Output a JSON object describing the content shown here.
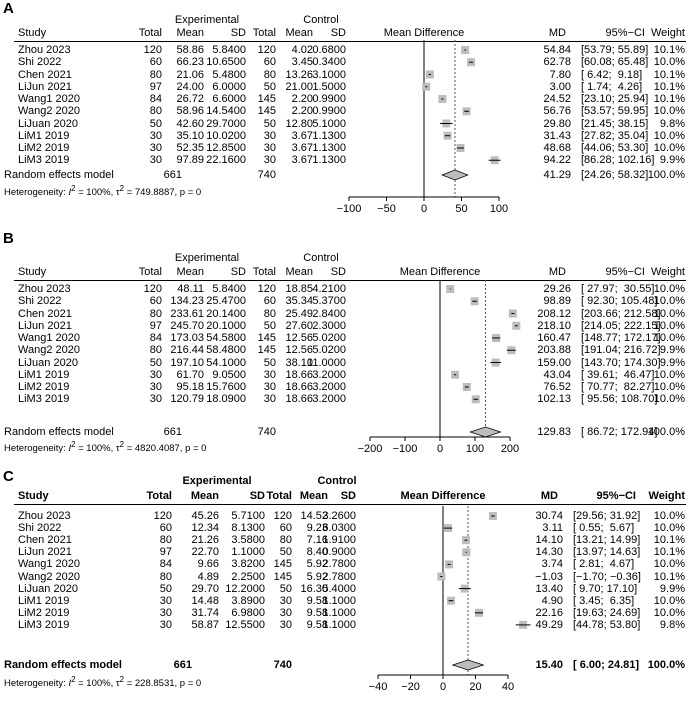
{
  "headers": {
    "study": "Study",
    "experimental": "Experimental",
    "control": "Control",
    "total": "Total",
    "mean": "Mean",
    "sd": "SD",
    "mean_difference": "Mean Difference",
    "md": "MD",
    "ci": "95%−CI",
    "weight": "Weight"
  },
  "chart_data": [
    {
      "panel": "A",
      "type": "forest",
      "bold_headers": false,
      "xlim": [
        -100,
        100
      ],
      "ticks": [
        "−100",
        "−50",
        "0",
        "50",
        "100"
      ],
      "tick_values": [
        -100,
        -50,
        0,
        50,
        100
      ],
      "rows": [
        {
          "study": "Zhou 2023",
          "e_total": "120",
          "e_mean": "58.86",
          "e_sd": "5.8400",
          "c_total": "120",
          "c_mean": "4.02",
          "c_sd": "0.6800",
          "md": "54.84",
          "ci": "[53.79; 55.89]",
          "weight": "10.1%",
          "md_v": 54.84,
          "lo": 53.79,
          "hi": 55.89
        },
        {
          "study": "Shi 2022",
          "e_total": "60",
          "e_mean": "66.23",
          "e_sd": "10.6500",
          "c_total": "60",
          "c_mean": "3.45",
          "c_sd": "0.3400",
          "md": "62.78",
          "ci": "[60.08; 65.48]",
          "weight": "10.0%",
          "md_v": 62.78,
          "lo": 60.08,
          "hi": 65.48
        },
        {
          "study": "Chen 2021",
          "e_total": "80",
          "e_mean": "21.06",
          "e_sd": "5.4800",
          "c_total": "80",
          "c_mean": "13.26",
          "c_sd": "3.1000",
          "md": "7.80",
          "ci": "[ 6.42;  9.18]",
          "weight": "10.1%",
          "md_v": 7.8,
          "lo": 6.42,
          "hi": 9.18
        },
        {
          "study": "LiJun 2021",
          "e_total": "97",
          "e_mean": "24.00",
          "e_sd": "6.0000",
          "c_total": "50",
          "c_mean": "21.00",
          "c_sd": "1.5000",
          "md": "3.00",
          "ci": "[ 1.74;  4.26]",
          "weight": "10.1%",
          "md_v": 3.0,
          "lo": 1.74,
          "hi": 4.26
        },
        {
          "study": "Wang1 2020",
          "e_total": "84",
          "e_mean": "26.72",
          "e_sd": "6.6000",
          "c_total": "145",
          "c_mean": "2.20",
          "c_sd": "0.9900",
          "md": "24.52",
          "ci": "[23.10; 25.94]",
          "weight": "10.1%",
          "md_v": 24.52,
          "lo": 23.1,
          "hi": 25.94
        },
        {
          "study": "Wang2 2020",
          "e_total": "80",
          "e_mean": "58.96",
          "e_sd": "14.5400",
          "c_total": "145",
          "c_mean": "2.20",
          "c_sd": "0.9900",
          "md": "56.76",
          "ci": "[53.57; 59.95]",
          "weight": "10.0%",
          "md_v": 56.76,
          "lo": 53.57,
          "hi": 59.95
        },
        {
          "study": "LiJuan 2020",
          "e_total": "50",
          "e_mean": "42.60",
          "e_sd": "29.7000",
          "c_total": "50",
          "c_mean": "12.80",
          "c_sd": "5.1000",
          "md": "29.80",
          "ci": "[21.45; 38.15]",
          "weight": "9.8%",
          "md_v": 29.8,
          "lo": 21.45,
          "hi": 38.15
        },
        {
          "study": "LiM1 2019",
          "e_total": "30",
          "e_mean": "35.10",
          "e_sd": "10.0200",
          "c_total": "30",
          "c_mean": "3.67",
          "c_sd": "1.1300",
          "md": "31.43",
          "ci": "[27.82; 35.04]",
          "weight": "10.0%",
          "md_v": 31.43,
          "lo": 27.82,
          "hi": 35.04
        },
        {
          "study": "LiM2 2019",
          "e_total": "30",
          "e_mean": "52.35",
          "e_sd": "12.8500",
          "c_total": "30",
          "c_mean": "3.67",
          "c_sd": "1.1300",
          "md": "48.68",
          "ci": "[44.06; 53.30]",
          "weight": "10.0%",
          "md_v": 48.68,
          "lo": 44.06,
          "hi": 53.3
        },
        {
          "study": "LiM3 2019",
          "e_total": "30",
          "e_mean": "97.89",
          "e_sd": "22.1600",
          "c_total": "30",
          "c_mean": "3.67",
          "c_sd": "1.1300",
          "md": "94.22",
          "ci": "[86.28; 102.16]",
          "weight": "9.9%",
          "md_v": 94.22,
          "lo": 86.28,
          "hi": 102.16
        }
      ],
      "pooled": {
        "label": "Random effects model",
        "e_total": "661",
        "c_total": "740",
        "md": "41.29",
        "ci": "[24.26; 58.32]",
        "weight": "100.0%",
        "md_v": 41.29,
        "lo": 24.26,
        "hi": 58.32
      },
      "heterogeneity": {
        "prefix": "Heterogeneity: ",
        "i2": "I",
        "i2_rest": " = 100%, ",
        "tau": "τ",
        "tau_rest": " = 749.8887, p = 0"
      }
    },
    {
      "panel": "B",
      "type": "forest",
      "bold_headers": false,
      "xlim": [
        -200,
        200
      ],
      "ticks": [
        "−200",
        "−100",
        "0",
        "100",
        "200"
      ],
      "tick_values": [
        -200,
        -100,
        0,
        100,
        200
      ],
      "rows": [
        {
          "study": "Zhou 2023",
          "e_total": "120",
          "e_mean": "48.11",
          "e_sd": "5.8400",
          "c_total": "120",
          "c_mean": "18.85",
          "c_sd": "4.2100",
          "md": "29.26",
          "ci": "[ 27.97;  30.55]",
          "weight": "10.0%",
          "md_v": 29.26,
          "lo": 27.97,
          "hi": 30.55
        },
        {
          "study": "Shi 2022",
          "e_total": "60",
          "e_mean": "134.23",
          "e_sd": "25.4700",
          "c_total": "60",
          "c_mean": "35.34",
          "c_sd": "5.3700",
          "md": "98.89",
          "ci": "[ 92.30; 105.48]",
          "weight": "10.0%",
          "md_v": 98.89,
          "lo": 92.3,
          "hi": 105.48
        },
        {
          "study": "Chen 2021",
          "e_total": "80",
          "e_mean": "233.61",
          "e_sd": "20.1400",
          "c_total": "80",
          "c_mean": "25.49",
          "c_sd": "2.8400",
          "md": "208.12",
          "ci": "[203.66; 212.58]",
          "weight": "10.0%",
          "md_v": 208.12,
          "lo": 203.66,
          "hi": 212.58
        },
        {
          "study": "LiJun 2021",
          "e_total": "97",
          "e_mean": "245.70",
          "e_sd": "20.1000",
          "c_total": "50",
          "c_mean": "27.60",
          "c_sd": "2.3000",
          "md": "218.10",
          "ci": "[214.05; 222.15]",
          "weight": "10.0%",
          "md_v": 218.1,
          "lo": 214.05,
          "hi": 222.15
        },
        {
          "study": "Wang1 2020",
          "e_total": "84",
          "e_mean": "173.03",
          "e_sd": "54.5800",
          "c_total": "145",
          "c_mean": "12.56",
          "c_sd": "5.0200",
          "md": "160.47",
          "ci": "[148.77; 172.17]",
          "weight": "10.0%",
          "md_v": 160.47,
          "lo": 148.77,
          "hi": 172.17
        },
        {
          "study": "Wang2 2020",
          "e_total": "80",
          "e_mean": "216.44",
          "e_sd": "58.4800",
          "c_total": "145",
          "c_mean": "12.56",
          "c_sd": "5.0200",
          "md": "203.88",
          "ci": "[191.04; 216.72]",
          "weight": "9.9%",
          "md_v": 203.88,
          "lo": 191.04,
          "hi": 216.72
        },
        {
          "study": "LiJuan 2020",
          "e_total": "50",
          "e_mean": "197.10",
          "e_sd": "54.1000",
          "c_total": "50",
          "c_mean": "38.10",
          "c_sd": "11.0000",
          "md": "159.00",
          "ci": "[143.70; 174.30]",
          "weight": "9.9%",
          "md_v": 159.0,
          "lo": 143.7,
          "hi": 174.3
        },
        {
          "study": "LiM1 2019",
          "e_total": "30",
          "e_mean": "61.70",
          "e_sd": "9.0500",
          "c_total": "30",
          "c_mean": "18.66",
          "c_sd": "3.2000",
          "md": "43.04",
          "ci": "[ 39.61;  46.47]",
          "weight": "10.0%",
          "md_v": 43.04,
          "lo": 39.61,
          "hi": 46.47
        },
        {
          "study": "LiM2 2019",
          "e_total": "30",
          "e_mean": "95.18",
          "e_sd": "15.7600",
          "c_total": "30",
          "c_mean": "18.66",
          "c_sd": "3.2000",
          "md": "76.52",
          "ci": "[ 70.77;  82.27]",
          "weight": "10.0%",
          "md_v": 76.52,
          "lo": 70.77,
          "hi": 82.27
        },
        {
          "study": "LiM3 2019",
          "e_total": "30",
          "e_mean": "120.79",
          "e_sd": "18.0900",
          "c_total": "30",
          "c_mean": "18.66",
          "c_sd": "3.2000",
          "md": "102.13",
          "ci": "[ 95.56; 108.70]",
          "weight": "10.0%",
          "md_v": 102.13,
          "lo": 95.56,
          "hi": 108.7
        }
      ],
      "pooled": {
        "label": "Random effects model",
        "e_total": "661",
        "c_total": "740",
        "md": "129.83",
        "ci": "[ 86.72; 172.94]",
        "weight": "100.0%",
        "md_v": 129.83,
        "lo": 86.72,
        "hi": 172.94
      },
      "heterogeneity": {
        "prefix": "Heterogeneity: ",
        "i2": "I",
        "i2_rest": " = 100%, ",
        "tau": "τ",
        "tau_rest": " = 4820.4087, p = 0"
      }
    },
    {
      "panel": "C",
      "type": "forest",
      "bold_headers": true,
      "xlim": [
        -40,
        40
      ],
      "ticks": [
        "−40",
        "−20",
        "0",
        "20",
        "40"
      ],
      "tick_values": [
        -40,
        -20,
        0,
        20,
        40
      ],
      "rows": [
        {
          "study": "Zhou 2023",
          "e_total": "120",
          "e_mean": "45.26",
          "e_sd": "5.7100",
          "c_total": "120",
          "c_mean": "14.52",
          "c_sd": "3.2600",
          "md": "30.74",
          "ci": "[29.56; 31.92]",
          "weight": "10.0%",
          "md_v": 30.74,
          "lo": 29.56,
          "hi": 31.92
        },
        {
          "study": "Shi 2022",
          "e_total": "60",
          "e_mean": "12.34",
          "e_sd": "8.1300",
          "c_total": "60",
          "c_mean": "9.23",
          "c_sd": "6.0300",
          "md": "3.11",
          "ci": "[ 0.55;  5.67]",
          "weight": "10.0%",
          "md_v": 3.11,
          "lo": 0.55,
          "hi": 5.67
        },
        {
          "study": "Chen 2021",
          "e_total": "80",
          "e_mean": "21.26",
          "e_sd": "3.5800",
          "c_total": "80",
          "c_mean": "7.16",
          "c_sd": "1.9100",
          "md": "14.10",
          "ci": "[13.21; 14.99]",
          "weight": "10.1%",
          "md_v": 14.1,
          "lo": 13.21,
          "hi": 14.99
        },
        {
          "study": "LiJun 2021",
          "e_total": "97",
          "e_mean": "22.70",
          "e_sd": "1.1000",
          "c_total": "50",
          "c_mean": "8.40",
          "c_sd": "0.9000",
          "md": "14.30",
          "ci": "[13.97; 14.63]",
          "weight": "10.1%",
          "md_v": 14.3,
          "lo": 13.97,
          "hi": 14.63
        },
        {
          "study": "Wang1 2020",
          "e_total": "84",
          "e_mean": "9.66",
          "e_sd": "3.8200",
          "c_total": "145",
          "c_mean": "5.92",
          "c_sd": "2.7800",
          "md": "3.74",
          "ci": "[ 2.81;  4.67]",
          "weight": "10.0%",
          "md_v": 3.74,
          "lo": 2.81,
          "hi": 4.67
        },
        {
          "study": "Wang2 2020",
          "e_total": "80",
          "e_mean": "4.89",
          "e_sd": "2.2500",
          "c_total": "145",
          "c_mean": "5.92",
          "c_sd": "2.7800",
          "md": "−1.03",
          "ci": "[−1.70; −0.36]",
          "weight": "10.1%",
          "md_v": -1.03,
          "lo": -1.7,
          "hi": -0.36
        },
        {
          "study": "LiJuan 2020",
          "e_total": "50",
          "e_mean": "29.70",
          "e_sd": "12.2000",
          "c_total": "50",
          "c_mean": "16.30",
          "c_sd": "5.4000",
          "md": "13.40",
          "ci": "[ 9.70; 17.10]",
          "weight": "9.9%",
          "md_v": 13.4,
          "lo": 9.7,
          "hi": 17.1
        },
        {
          "study": "LiM1 2019",
          "e_total": "30",
          "e_mean": "14.48",
          "e_sd": "3.8900",
          "c_total": "30",
          "c_mean": "9.58",
          "c_sd": "1.1000",
          "md": "4.90",
          "ci": "[ 3.45;  6.35]",
          "weight": "10.0%",
          "md_v": 4.9,
          "lo": 3.45,
          "hi": 6.35
        },
        {
          "study": "LiM2 2019",
          "e_total": "30",
          "e_mean": "31.74",
          "e_sd": "6.9800",
          "c_total": "30",
          "c_mean": "9.58",
          "c_sd": "1.1000",
          "md": "22.16",
          "ci": "[19.63; 24.69]",
          "weight": "10.0%",
          "md_v": 22.16,
          "lo": 19.63,
          "hi": 24.69
        },
        {
          "study": "LiM3 2019",
          "e_total": "30",
          "e_mean": "58.87",
          "e_sd": "12.5500",
          "c_total": "30",
          "c_mean": "9.58",
          "c_sd": "1.1000",
          "md": "49.29",
          "ci": "[44.78; 53.80]",
          "weight": "9.8%",
          "md_v": 49.29,
          "lo": 44.78,
          "hi": 53.8
        }
      ],
      "pooled": {
        "label": "Random effects model",
        "e_total": "661",
        "c_total": "740",
        "md": "15.40",
        "ci": "[ 6.00; 24.81]",
        "weight": "100.0%",
        "md_v": 15.4,
        "lo": 6.0,
        "hi": 24.81
      },
      "heterogeneity": {
        "prefix": "Heterogeneity: ",
        "i2": "I",
        "i2_rest": " = 100%, ",
        "tau": "τ",
        "tau_rest": " = 228.8531, p = 0"
      }
    }
  ]
}
